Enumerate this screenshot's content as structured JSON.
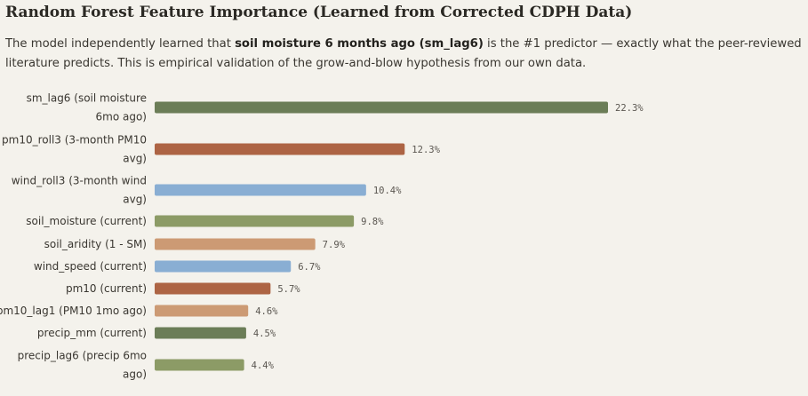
{
  "header": {
    "title": "Random Forest Feature Importance (Learned from Corrected CDPH Data)",
    "desc_prefix": "The model independently learned that ",
    "desc_bold": "soil moisture 6 months ago (sm_lag6)",
    "desc_suffix": " is the #1 predictor — exactly what the peer-reviewed literature predicts. This is empirical validation of the grow-and-blow hypothesis from our own data."
  },
  "chart_data": {
    "type": "bar",
    "orientation": "horizontal",
    "unit": "%",
    "categories": [
      "sm_lag6 (soil moisture 6mo ago)",
      "pm10_roll3 (3-month PM10 avg)",
      "wind_roll3 (3-month wind avg)",
      "soil_moisture (current)",
      "soil_aridity (1 - SM)",
      "wind_speed (current)",
      "pm10 (current)",
      "pm10_lag1 (PM10 1mo ago)",
      "precip_mm (current)",
      "precip_lag6 (precip 6mo ago)"
    ],
    "category_lines": [
      [
        "sm_lag6 (soil moisture",
        "6mo ago)"
      ],
      [
        "pm10_roll3 (3-month PM10",
        "avg)"
      ],
      [
        "wind_roll3 (3-month wind",
        "avg)"
      ],
      [
        "soil_moisture (current)"
      ],
      [
        "soil_aridity (1 - SM)"
      ],
      [
        "wind_speed (current)"
      ],
      [
        "pm10 (current)"
      ],
      [
        "pm10_lag1 (PM10 1mo ago)"
      ],
      [
        "precip_mm (current)"
      ],
      [
        "precip_lag6 (precip 6mo",
        "ago)"
      ]
    ],
    "values": [
      22.3,
      12.3,
      10.4,
      9.8,
      7.9,
      6.7,
      5.7,
      4.6,
      4.5,
      4.4
    ],
    "value_labels": [
      "22.3%",
      "12.3%",
      "10.4%",
      "9.8%",
      "7.9%",
      "6.7%",
      "5.7%",
      "4.6%",
      "4.5%",
      "4.4%"
    ],
    "colors": [
      "#6b7d57",
      "#ad6444",
      "#89aed3",
      "#8c9b66",
      "#cc9a74",
      "#89aed3",
      "#ad6444",
      "#cc9a74",
      "#6b7d57",
      "#8c9b66"
    ],
    "grid": false,
    "legend": "none"
  }
}
